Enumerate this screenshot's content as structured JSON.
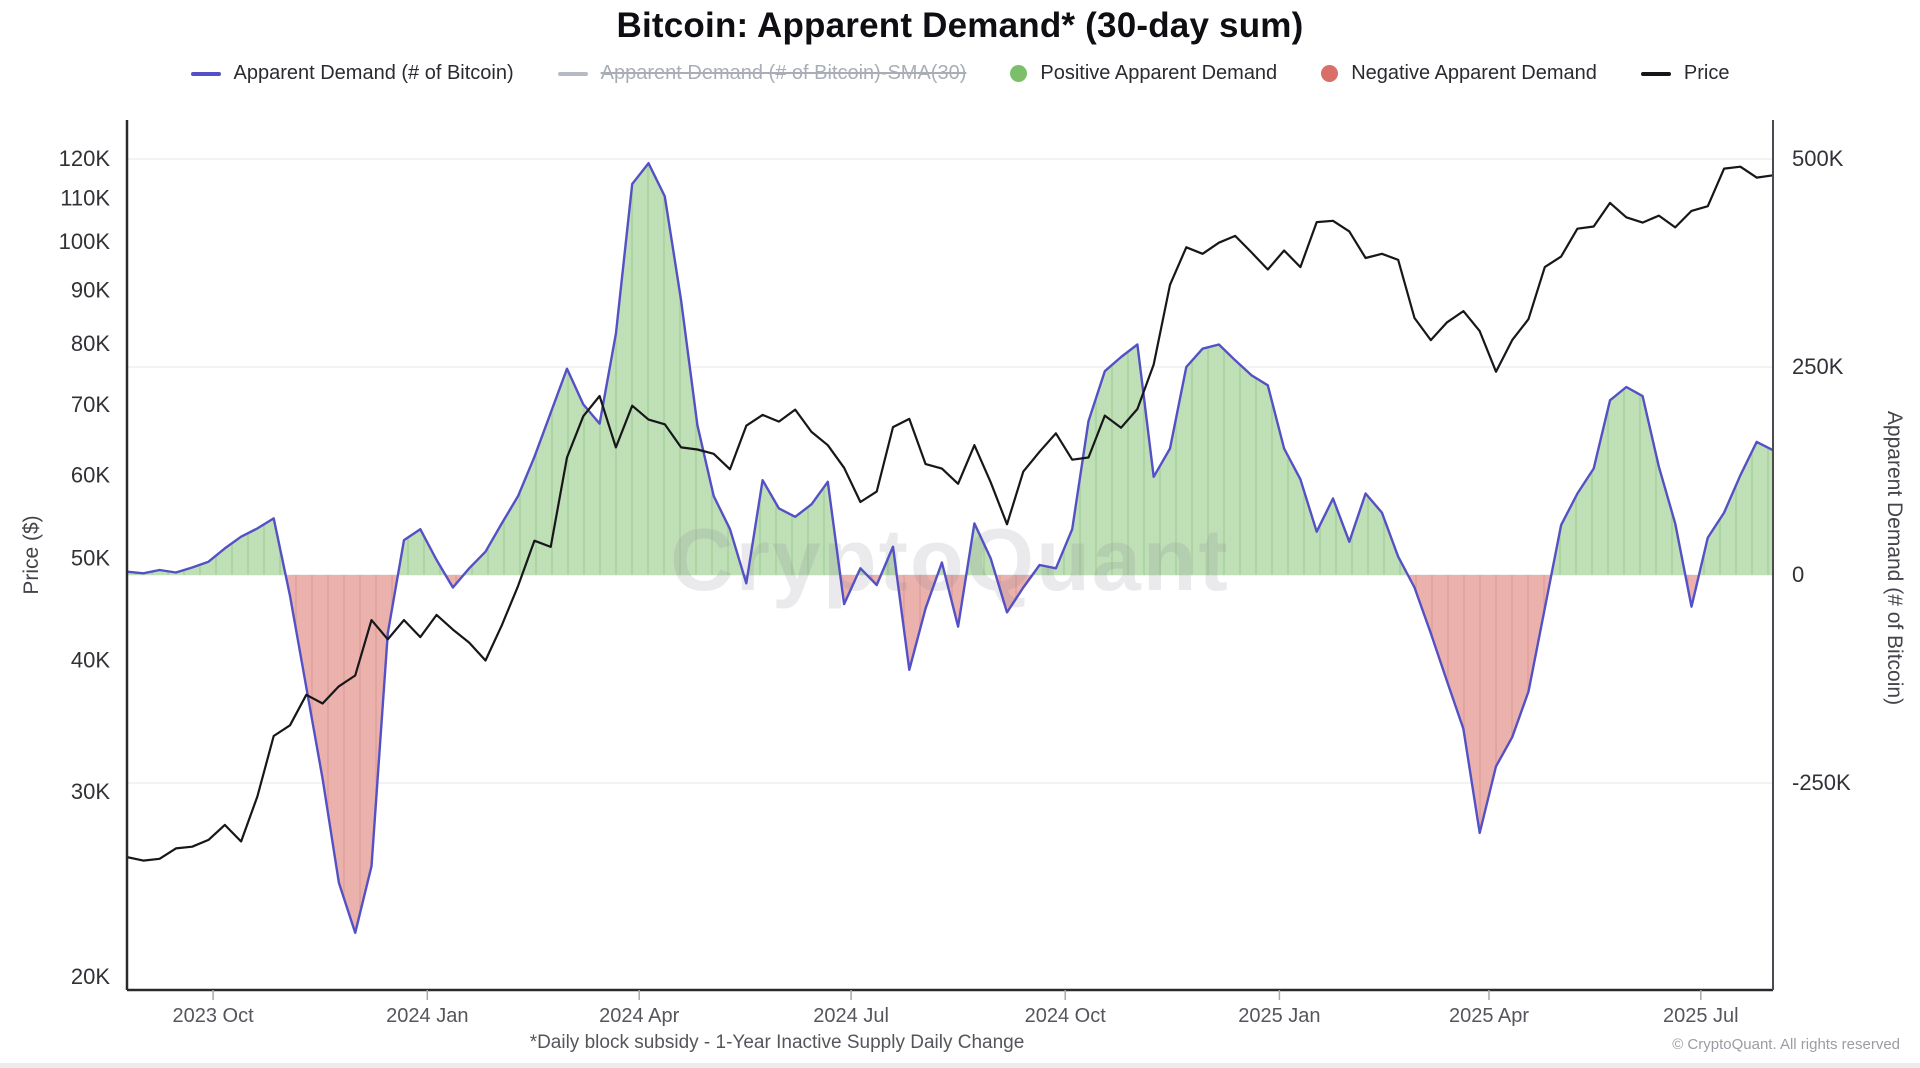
{
  "title": "Bitcoin: Apparent Demand* (30-day sum)",
  "watermark": "CryptoQuant",
  "legend": {
    "items": [
      {
        "label": "Apparent Demand (# of Bitcoin)",
        "swatch": "line",
        "color": "#5450c5",
        "disabled": false
      },
      {
        "label": "Apparent Demand (# of Bitcoin)-SMA(30)",
        "swatch": "line",
        "color": "#b6bac2",
        "disabled": true
      },
      {
        "label": "Positive Apparent Demand",
        "swatch": "dot",
        "color": "#7cbf6b",
        "disabled": false
      },
      {
        "label": "Negative Apparent Demand",
        "swatch": "dot",
        "color": "#d96f68",
        "disabled": false
      },
      {
        "label": "Price",
        "swatch": "line",
        "color": "#15151a",
        "disabled": false
      }
    ]
  },
  "footer": {
    "note": "*Daily block subsidy - 1-Year Inactive Supply Daily Change",
    "copyright": "© CryptoQuant. All rights reserved"
  },
  "axes": {
    "left": {
      "title": "Price ($)",
      "scale": "log",
      "ticks": [
        {
          "label": "120K",
          "v": 120
        },
        {
          "label": "110K",
          "v": 110
        },
        {
          "label": "100K",
          "v": 100
        },
        {
          "label": "90K",
          "v": 90
        },
        {
          "label": "80K",
          "v": 80
        },
        {
          "label": "70K",
          "v": 70
        },
        {
          "label": "60K",
          "v": 60
        },
        {
          "label": "50K",
          "v": 50
        },
        {
          "label": "40K",
          "v": 40
        },
        {
          "label": "30K",
          "v": 30
        },
        {
          "label": "20K",
          "v": 20
        }
      ]
    },
    "right": {
      "title": "Apparent Demand (# of Bitcoin)",
      "scale": "linear",
      "ticks": [
        {
          "label": "500K",
          "v": 500
        },
        {
          "label": "250K",
          "v": 250
        },
        {
          "label": "0",
          "v": 0
        },
        {
          "label": "-250K",
          "v": -250
        }
      ]
    },
    "x": {
      "ticks": [
        {
          "label": "2023 Oct",
          "date": "2023-10-01"
        },
        {
          "label": "2024 Jan",
          "date": "2024-01-01"
        },
        {
          "label": "2024 Apr",
          "date": "2024-04-01"
        },
        {
          "label": "2024 Jul",
          "date": "2024-07-01"
        },
        {
          "label": "2024 Oct",
          "date": "2024-10-01"
        },
        {
          "label": "2025 Jan",
          "date": "2025-01-01"
        },
        {
          "label": "2025 Apr",
          "date": "2025-04-01"
        },
        {
          "label": "2025 Jul",
          "date": "2025-07-01"
        }
      ]
    }
  },
  "colors": {
    "demand_line": "#5450c5",
    "price_line": "#17171b",
    "positive_fill": "#bfdfb6",
    "positive_hatch": "#a6d09b",
    "negative_fill": "#ebb2ad",
    "negative_hatch": "#df9e99",
    "gridline": "#efeff1",
    "axis": "#2a2a2e"
  },
  "chart_data": {
    "type": "line",
    "title": "Bitcoin: Apparent Demand* (30-day sum)",
    "subtitle_note": "*Daily block subsidy - 1-Year Inactive Supply Daily Change",
    "legend_position": "top",
    "grid": "faint horizontal at right-axis ticks",
    "left_axis": {
      "label": "Price ($)",
      "scale": "log",
      "range_thousand_usd": [
        20,
        120
      ]
    },
    "right_axis": {
      "label": "Apparent Demand (# of Bitcoin)",
      "scale": "linear",
      "ticks_thousand_btc": [
        500,
        250,
        0,
        -250
      ]
    },
    "x_range": [
      "2023-08-25",
      "2025-08-01"
    ],
    "x_dates": [
      "2023-08-25",
      "2023-09-01",
      "2023-09-08",
      "2023-09-15",
      "2023-09-22",
      "2023-09-29",
      "2023-10-06",
      "2023-10-13",
      "2023-10-20",
      "2023-10-27",
      "2023-11-03",
      "2023-11-10",
      "2023-11-17",
      "2023-11-24",
      "2023-12-01",
      "2023-12-08",
      "2023-12-15",
      "2023-12-22",
      "2023-12-29",
      "2024-01-05",
      "2024-01-12",
      "2024-01-19",
      "2024-01-26",
      "2024-02-02",
      "2024-02-09",
      "2024-02-16",
      "2024-02-23",
      "2024-03-01",
      "2024-03-08",
      "2024-03-15",
      "2024-03-22",
      "2024-03-29",
      "2024-04-05",
      "2024-04-12",
      "2024-04-19",
      "2024-04-26",
      "2024-05-03",
      "2024-05-10",
      "2024-05-17",
      "2024-05-24",
      "2024-05-31",
      "2024-06-07",
      "2024-06-14",
      "2024-06-21",
      "2024-06-28",
      "2024-07-05",
      "2024-07-12",
      "2024-07-19",
      "2024-07-26",
      "2024-08-02",
      "2024-08-09",
      "2024-08-16",
      "2024-08-23",
      "2024-08-30",
      "2024-09-06",
      "2024-09-13",
      "2024-09-20",
      "2024-09-27",
      "2024-10-04",
      "2024-10-11",
      "2024-10-18",
      "2024-10-25",
      "2024-11-01",
      "2024-11-08",
      "2024-11-15",
      "2024-11-22",
      "2024-11-29",
      "2024-12-06",
      "2024-12-13",
      "2024-12-20",
      "2024-12-27",
      "2025-01-03",
      "2025-01-10",
      "2025-01-17",
      "2025-01-24",
      "2025-01-31",
      "2025-02-07",
      "2025-02-14",
      "2025-02-21",
      "2025-02-28",
      "2025-03-07",
      "2025-03-14",
      "2025-03-21",
      "2025-03-28",
      "2025-04-04",
      "2025-04-11",
      "2025-04-18",
      "2025-04-25",
      "2025-05-02",
      "2025-05-09",
      "2025-05-16",
      "2025-05-23",
      "2025-05-30",
      "2025-06-06",
      "2025-06-13",
      "2025-06-20",
      "2025-06-27",
      "2025-07-04",
      "2025-07-11",
      "2025-07-18",
      "2025-07-25",
      "2025-08-01"
    ],
    "series": [
      {
        "name": "Apparent Demand (# of Bitcoin)",
        "axis": "right",
        "unit": "thousand BTC",
        "style": "area-line, green fill above 0, red fill below 0",
        "values": [
          4,
          2,
          6,
          3,
          9,
          16,
          32,
          46,
          56,
          68,
          -25,
          -135,
          -245,
          -370,
          -430,
          -350,
          -70,
          42,
          55,
          18,
          -15,
          8,
          28,
          62,
          95,
          142,
          195,
          248,
          205,
          182,
          290,
          470,
          495,
          455,
          330,
          180,
          95,
          55,
          -10,
          114,
          80,
          70,
          85,
          112,
          -35,
          8,
          -12,
          34,
          -114,
          -40,
          15,
          -62,
          62,
          20,
          -45,
          -15,
          12,
          8,
          55,
          185,
          245,
          262,
          277,
          118,
          152,
          250,
          272,
          277,
          258,
          240,
          228,
          152,
          115,
          52,
          92,
          40,
          98,
          75,
          22,
          -15,
          -70,
          -128,
          -185,
          -310,
          -230,
          -195,
          -140,
          -40,
          60,
          98,
          128,
          210,
          226,
          215,
          130,
          62,
          -38,
          45,
          75,
          120,
          160,
          150
        ]
      },
      {
        "name": "Apparent Demand (# of Bitcoin)-SMA(30)",
        "axis": "right",
        "unit": "thousand BTC",
        "style": "hidden (legend entry struck through / disabled)",
        "values": []
      },
      {
        "name": "Price",
        "axis": "left",
        "unit": "thousand USD",
        "style": "line",
        "values": [
          26.0,
          25.8,
          25.9,
          26.5,
          26.6,
          27.0,
          27.9,
          26.9,
          29.7,
          33.9,
          34.7,
          37.1,
          36.4,
          37.8,
          38.7,
          43.7,
          41.9,
          43.7,
          42.1,
          44.2,
          42.8,
          41.6,
          40.0,
          43.2,
          47.1,
          52.0,
          51.3,
          62.4,
          68.3,
          71.4,
          63.8,
          69.9,
          67.8,
          67.1,
          63.8,
          63.5,
          62.9,
          60.8,
          66.9,
          68.5,
          67.5,
          69.3,
          66.0,
          64.1,
          61.0,
          56.6,
          57.9,
          66.7,
          67.9,
          61.5,
          60.9,
          58.9,
          64.1,
          59.1,
          53.9,
          60.5,
          63.2,
          65.8,
          62.1,
          62.4,
          68.4,
          66.6,
          69.4,
          76.5,
          91.1,
          98.9,
          97.5,
          99.9,
          101.4,
          97.8,
          94.2,
          98.2,
          94.7,
          104.5,
          104.8,
          102.4,
          96.6,
          97.5,
          96.2,
          84.7,
          80.7,
          83.9,
          86.0,
          82.3,
          75.3,
          80.7,
          84.5,
          94.7,
          96.9,
          103.0,
          103.5,
          109.0,
          105.6,
          104.4,
          106.0,
          103.3,
          107.1,
          108.2,
          117.5,
          118.0,
          115.2,
          115.8
        ]
      }
    ]
  }
}
